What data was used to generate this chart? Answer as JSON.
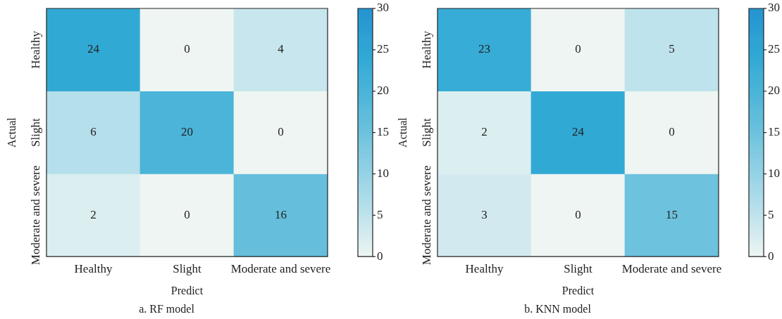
{
  "chart_data": [
    {
      "type": "heatmap",
      "title": "a. RF model",
      "xlabel": "Predict",
      "ylabel": "Actual",
      "categories": [
        "Healthy",
        "Slight",
        "Moderate and severe"
      ],
      "y_categories": [
        "Healthy",
        "Slight",
        "Moderate and severe"
      ],
      "cells": [
        [
          24,
          0,
          4
        ],
        [
          6,
          20,
          0
        ],
        [
          2,
          0,
          16
        ]
      ],
      "clim": [
        0,
        30
      ],
      "cticks": [
        0,
        5,
        10,
        15,
        20,
        25,
        30
      ],
      "data_labels": true
    },
    {
      "type": "heatmap",
      "title": "b. KNN model",
      "xlabel": "Predict",
      "ylabel": "Actual",
      "categories": [
        "Healthy",
        "Slight",
        "Moderate and severe"
      ],
      "y_categories": [
        "Healthy",
        "Slight",
        "Moderate and severe"
      ],
      "cells": [
        [
          23,
          0,
          5
        ],
        [
          2,
          24,
          0
        ],
        [
          3,
          0,
          15
        ]
      ],
      "clim": [
        0,
        30
      ],
      "cticks": [
        0,
        5,
        10,
        15,
        20,
        25,
        30
      ],
      "data_labels": true
    }
  ]
}
